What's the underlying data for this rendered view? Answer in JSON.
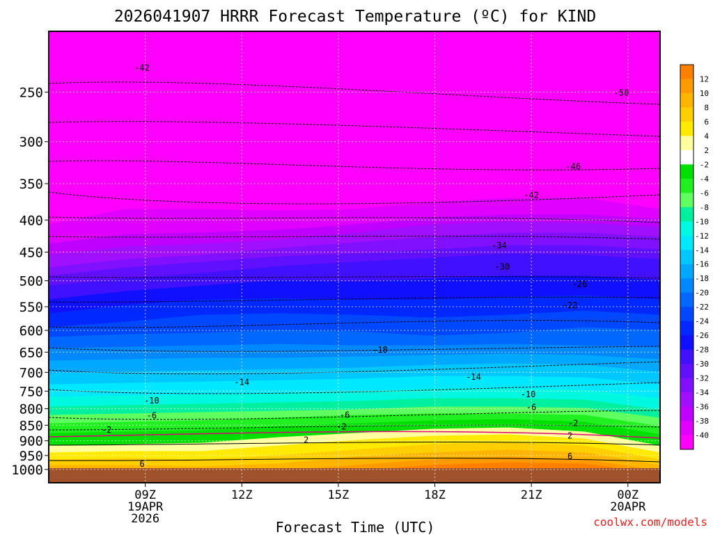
{
  "chart_data": {
    "type": "heatmap",
    "title": "2026041907 HRRR Forecast Temperature (ºC) for KIND",
    "xlabel": "Forecast Time (UTC)",
    "ylabel": "",
    "credit": "coolwx.com/models",
    "y_axis": {
      "scale": "log-pressure",
      "range": [
        1050,
        200
      ],
      "ticks": [
        250,
        300,
        350,
        400,
        450,
        500,
        550,
        600,
        650,
        700,
        750,
        800,
        850,
        900,
        950,
        1000
      ]
    },
    "x_axis": {
      "range": [
        "19APR2026 06Z",
        "20APR2026 01Z"
      ],
      "ticks": [
        {
          "top": "09Z",
          "line2": "19APR",
          "line3": "2026"
        },
        {
          "top": "12Z",
          "line2": "",
          "line3": ""
        },
        {
          "top": "15Z",
          "line2": "",
          "line3": ""
        },
        {
          "top": "18Z",
          "line2": "",
          "line3": ""
        },
        {
          "top": "21Z",
          "line2": "",
          "line3": ""
        },
        {
          "top": "00Z",
          "line2": "20APR",
          "line3": ""
        }
      ]
    },
    "grid": true,
    "colorbar": {
      "placement": "right",
      "labels": [
        "12",
        "10",
        "8",
        "6",
        "4",
        "2",
        "-2",
        "-4",
        "-6",
        "-8",
        "-10",
        "-12",
        "-14",
        "-16",
        "-18",
        "-20",
        "-22",
        "-24",
        "-26",
        "-28",
        "-30",
        "-32",
        "-34",
        "-36",
        "-38",
        "-40"
      ],
      "colors": [
        "#ff7f00",
        "#ff9a00",
        "#ffb400",
        "#ffcf00",
        "#ffea00",
        "#ffffa0",
        "#ffffff",
        "#00e000",
        "#20f020",
        "#60ff60",
        "#00f0a0",
        "#00f8e0",
        "#00e8ff",
        "#00c8ff",
        "#00a8ff",
        "#0088ff",
        "#0068ff",
        "#0048ff",
        "#0028ff",
        "#1010ff",
        "#4010ff",
        "#6010ff",
        "#8010ff",
        "#a010ff",
        "#c000ff",
        "#e000ff",
        "#ff00ff"
      ]
    },
    "colors": {
      "ground": "#a0522d",
      "freezing_line": "#e0007a",
      "upper": "#ff00ff"
    },
    "isotherms": [
      {
        "label": "-50",
        "t": 23.8,
        "p": 250
      },
      {
        "label": "-46",
        "t": 22.3,
        "p": 328
      },
      {
        "label": "-42",
        "t": 8.9,
        "p": 228
      },
      {
        "label": "-42",
        "t": 21.0,
        "p": 364
      },
      {
        "label": "-34",
        "t": 20.0,
        "p": 438
      },
      {
        "label": "-30",
        "t": 20.1,
        "p": 474
      },
      {
        "label": "-26",
        "t": 22.5,
        "p": 505
      },
      {
        "label": "-22",
        "t": 22.2,
        "p": 546
      },
      {
        "label": "-18",
        "t": 16.3,
        "p": 643
      },
      {
        "label": "-14",
        "t": 12.0,
        "p": 724
      },
      {
        "label": "-14",
        "t": 19.2,
        "p": 710
      },
      {
        "label": "-10",
        "t": 9.2,
        "p": 775
      },
      {
        "label": "-10",
        "t": 20.9,
        "p": 757
      },
      {
        "label": "-6",
        "t": 9.2,
        "p": 818
      },
      {
        "label": "-6",
        "t": 15.2,
        "p": 816
      },
      {
        "label": "-6",
        "t": 21.0,
        "p": 794
      },
      {
        "label": "-2",
        "t": 7.8,
        "p": 862
      },
      {
        "label": "-2",
        "t": 15.1,
        "p": 853
      },
      {
        "label": "-2",
        "t": 22.3,
        "p": 842
      },
      {
        "label": "2",
        "t": 14.0,
        "p": 895
      },
      {
        "label": "2",
        "t": 22.2,
        "p": 881
      },
      {
        "label": "6",
        "t": 8.9,
        "p": 977
      },
      {
        "label": "6",
        "t": 22.2,
        "p": 950
      }
    ]
  }
}
